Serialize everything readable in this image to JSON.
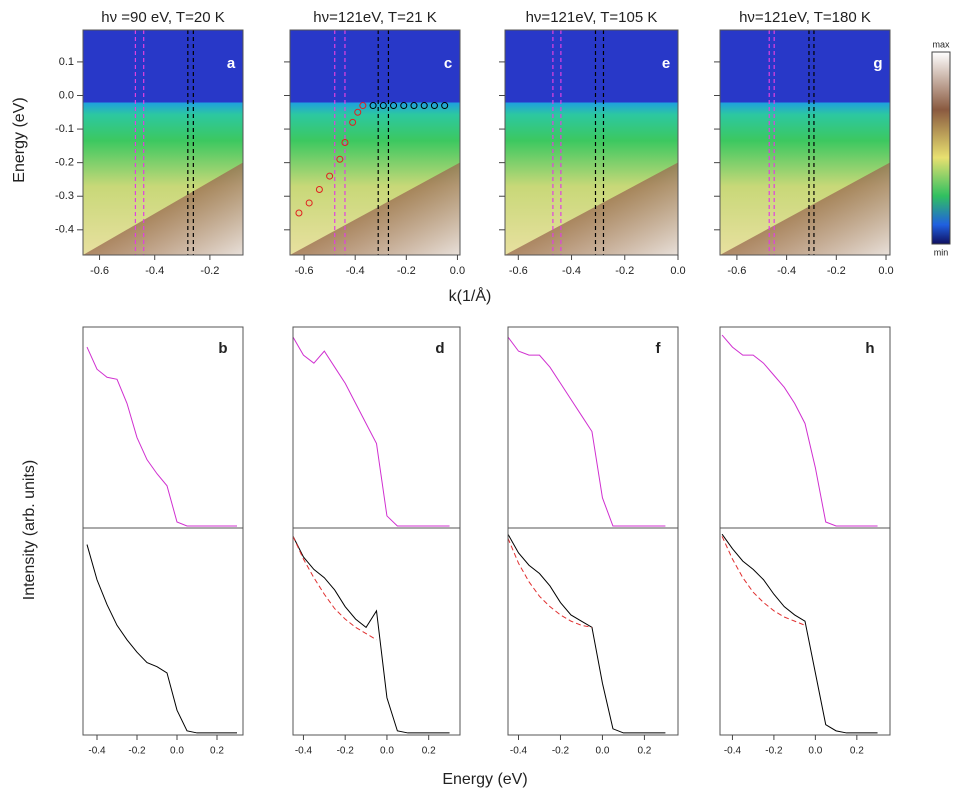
{
  "figure": {
    "y_label_top": "Energy (eV)",
    "x_label_top": "k(1/Å)",
    "y_label_bottom": "Intensity (arb. units)",
    "x_label_bottom": "Energy (eV)",
    "colorbar_max": "max",
    "colorbar_min": "min"
  },
  "chart_data": [
    {
      "type": "image",
      "title": "hν =90 eV, T=20 K",
      "panel_label": "a",
      "xlim": [
        -0.66,
        -0.08
      ],
      "ylim": [
        -0.475,
        0.195
      ],
      "xticks": [
        -0.6,
        -0.4,
        -0.2
      ],
      "yticks": [
        0.1,
        {
          "value": 0,
          "label": "0.0"
        },
        -0.1,
        -0.2,
        -0.3,
        -0.4
      ],
      "show_ytick_labels": true,
      "cuts": [
        {
          "x": -0.47,
          "color": "#e040e0"
        },
        {
          "x": -0.44,
          "color": "#e040e0"
        },
        {
          "x": -0.28,
          "color": "#000000"
        },
        {
          "x": -0.26,
          "color": "#000000"
        }
      ]
    },
    {
      "type": "image",
      "title": "hν=121eV, T=21 K",
      "panel_label": "c",
      "xlim": [
        -0.655,
        0.01
      ],
      "ylim": [
        -0.475,
        0.195
      ],
      "xticks": [
        -0.6,
        -0.4,
        -0.2,
        {
          "value": 0,
          "label": "0.0"
        }
      ],
      "yticks": [
        0.1,
        0,
        -0.1,
        -0.2,
        -0.3,
        -0.4
      ],
      "show_ytick_labels": false,
      "cuts": [
        {
          "x": -0.48,
          "color": "#e040e0"
        },
        {
          "x": -0.44,
          "color": "#e040e0"
        },
        {
          "x": -0.31,
          "color": "#000000"
        },
        {
          "x": -0.27,
          "color": "#000000"
        }
      ],
      "series": [
        {
          "color": "#e02020",
          "x": [
            -0.62,
            -0.58,
            -0.54,
            -0.5,
            -0.46,
            -0.44,
            -0.41,
            -0.39,
            -0.37
          ],
          "values": [
            -0.35,
            -0.32,
            -0.28,
            -0.24,
            -0.19,
            -0.14,
            -0.08,
            -0.05,
            -0.03
          ]
        },
        {
          "color": "#000000",
          "x": [
            -0.33,
            -0.29,
            -0.25,
            -0.21,
            -0.17,
            -0.13,
            -0.09,
            -0.05
          ],
          "values": [
            -0.03,
            -0.03,
            -0.03,
            -0.03,
            -0.03,
            -0.03,
            -0.03,
            -0.03
          ]
        }
      ]
    },
    {
      "type": "image",
      "title": "hν=121eV, T=105 K",
      "panel_label": "e",
      "xlim": [
        -0.65,
        0.0
      ],
      "ylim": [
        -0.475,
        0.195
      ],
      "xticks": [
        -0.6,
        -0.4,
        -0.2,
        {
          "value": 0,
          "label": "0.0"
        }
      ],
      "yticks": [
        0.1,
        0,
        -0.1,
        -0.2,
        -0.3,
        -0.4
      ],
      "show_ytick_labels": false,
      "cuts": [
        {
          "x": -0.47,
          "color": "#e040e0"
        },
        {
          "x": -0.44,
          "color": "#e040e0"
        },
        {
          "x": -0.31,
          "color": "#000000"
        },
        {
          "x": -0.28,
          "color": "#000000"
        }
      ]
    },
    {
      "type": "image",
      "title": "hν=121eV, T=180 K",
      "panel_label": "g",
      "xlim": [
        -0.668,
        0.016
      ],
      "ylim": [
        -0.475,
        0.195
      ],
      "xticks": [
        -0.6,
        -0.4,
        -0.2,
        {
          "value": 0,
          "label": "0.0"
        }
      ],
      "yticks": [
        0.1,
        0,
        -0.1,
        -0.2,
        -0.3,
        -0.4
      ],
      "show_ytick_labels": false,
      "cuts": [
        {
          "x": -0.47,
          "color": "#e040e0"
        },
        {
          "x": -0.45,
          "color": "#e040e0"
        },
        {
          "x": -0.31,
          "color": "#000000"
        },
        {
          "x": -0.29,
          "color": "#000000"
        }
      ]
    },
    {
      "type": "line",
      "panel_label": "b",
      "xlim": [
        -0.47,
        0.33
      ],
      "ylim": [
        0,
        1
      ],
      "xticks": [
        -0.4,
        -0.2,
        {
          "value": 0,
          "label": "0.0"
        },
        0.2
      ],
      "x": [
        -0.45,
        -0.4,
        -0.35,
        -0.3,
        -0.25,
        -0.2,
        -0.15,
        -0.1,
        -0.05,
        0,
        0.05,
        0.1,
        0.15,
        0.2,
        0.25,
        0.3
      ],
      "series": [
        {
          "color": "#d030d0",
          "row": 0,
          "values": [
            0.9,
            0.79,
            0.75,
            0.74,
            0.62,
            0.45,
            0.34,
            0.27,
            0.21,
            0.03,
            0.01,
            0.01,
            0.01,
            0.01,
            0.01,
            0.01
          ]
        },
        {
          "color": "#000000",
          "row": 1,
          "values": [
            0.92,
            0.75,
            0.63,
            0.53,
            0.46,
            0.4,
            0.35,
            0.33,
            0.3,
            0.12,
            0.02,
            0.01,
            0.01,
            0.01,
            0.01,
            0.01
          ]
        }
      ]
    },
    {
      "type": "line",
      "panel_label": "d",
      "xlim": [
        -0.45,
        0.35
      ],
      "ylim": [
        0,
        1
      ],
      "xticks": [
        -0.4,
        -0.2,
        {
          "value": 0,
          "label": "0.0"
        },
        0.2
      ],
      "x": [
        -0.45,
        -0.4,
        -0.35,
        -0.3,
        -0.25,
        -0.2,
        -0.15,
        -0.1,
        -0.05,
        0,
        0.05,
        0.1,
        0.15,
        0.2,
        0.25,
        0.3
      ],
      "series": [
        {
          "color": "#d030d0",
          "row": 0,
          "values": [
            0.95,
            0.86,
            0.82,
            0.88,
            0.8,
            0.72,
            0.62,
            0.52,
            0.42,
            0.06,
            0.01,
            0.01,
            0.01,
            0.01,
            0.01,
            0.01
          ]
        },
        {
          "color": "#000000",
          "row": 1,
          "values": [
            0.96,
            0.86,
            0.8,
            0.76,
            0.7,
            0.62,
            0.56,
            0.52,
            0.6,
            0.18,
            0.02,
            0.01,
            0.01,
            0.01,
            0.01,
            0.01
          ]
        },
        {
          "color": "#e03030",
          "row": 1,
          "dashed": true,
          "values": [
            0.96,
            0.85,
            0.76,
            0.68,
            0.61,
            0.56,
            0.52,
            0.49,
            0.46,
            null,
            null,
            null,
            null,
            null,
            null,
            null
          ]
        }
      ]
    },
    {
      "type": "line",
      "panel_label": "f",
      "xlim": [
        -0.45,
        0.36
      ],
      "ylim": [
        0,
        1
      ],
      "xticks": [
        -0.4,
        -0.2,
        {
          "value": 0,
          "label": "0.0"
        },
        0.2
      ],
      "x": [
        -0.45,
        -0.4,
        -0.35,
        -0.3,
        -0.25,
        -0.2,
        -0.15,
        -0.1,
        -0.05,
        0,
        0.05,
        0.1,
        0.15,
        0.2,
        0.25,
        0.3
      ],
      "series": [
        {
          "color": "#d030d0",
          "row": 0,
          "values": [
            0.95,
            0.88,
            0.86,
            0.86,
            0.8,
            0.72,
            0.64,
            0.56,
            0.48,
            0.15,
            0.01,
            0.01,
            0.01,
            0.01,
            0.01,
            0.01
          ]
        },
        {
          "color": "#000000",
          "row": 1,
          "values": [
            0.97,
            0.88,
            0.82,
            0.78,
            0.72,
            0.64,
            0.58,
            0.55,
            0.52,
            0.25,
            0.03,
            0.01,
            0.01,
            0.01,
            0.01,
            0.01
          ]
        },
        {
          "color": "#e03030",
          "row": 1,
          "dashed": true,
          "values": [
            0.95,
            0.83,
            0.74,
            0.67,
            0.62,
            0.58,
            0.55,
            0.53,
            0.52,
            null,
            null,
            null,
            null,
            null,
            null,
            null
          ]
        }
      ]
    },
    {
      "type": "line",
      "panel_label": "h",
      "xlim": [
        -0.46,
        0.36
      ],
      "ylim": [
        0,
        1
      ],
      "xticks": [
        -0.4,
        -0.2,
        {
          "value": 0,
          "label": "0.0"
        },
        0.2
      ],
      "x": [
        -0.45,
        -0.4,
        -0.35,
        -0.3,
        -0.25,
        -0.2,
        -0.15,
        -0.1,
        -0.05,
        0,
        0.05,
        0.1,
        0.15,
        0.2,
        0.25,
        0.3
      ],
      "series": [
        {
          "color": "#d030d0",
          "row": 0,
          "values": [
            0.96,
            0.9,
            0.86,
            0.86,
            0.82,
            0.76,
            0.7,
            0.62,
            0.52,
            0.3,
            0.03,
            0.01,
            0.01,
            0.01,
            0.01,
            0.01
          ]
        },
        {
          "color": "#000000",
          "row": 1,
          "values": [
            0.97,
            0.9,
            0.84,
            0.8,
            0.75,
            0.68,
            0.62,
            0.58,
            0.55,
            0.3,
            0.05,
            0.02,
            0.01,
            0.01,
            0.01,
            0.01
          ]
        },
        {
          "color": "#e03030",
          "row": 1,
          "dashed": true,
          "values": [
            0.96,
            0.85,
            0.76,
            0.69,
            0.64,
            0.6,
            0.57,
            0.55,
            0.53,
            null,
            null,
            null,
            null,
            null,
            null,
            null
          ]
        }
      ]
    }
  ]
}
